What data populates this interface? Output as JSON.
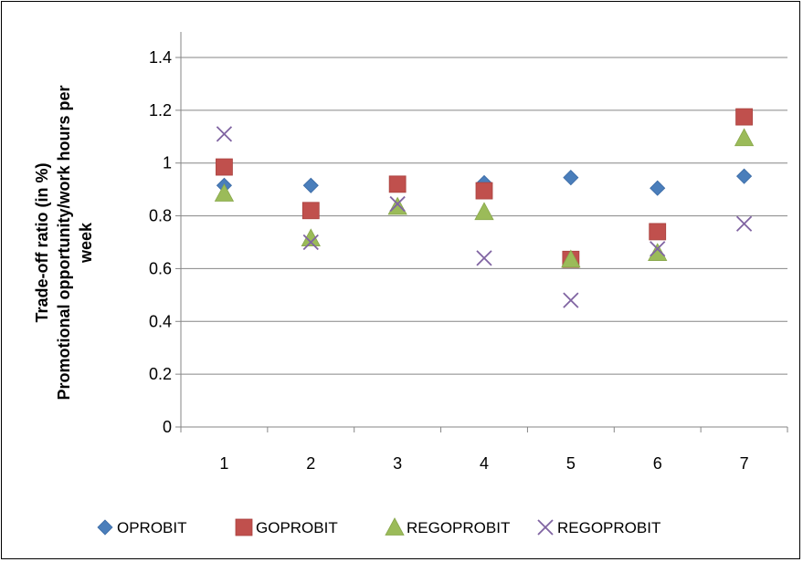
{
  "chart_data": {
    "type": "scatter",
    "categories": [
      "1",
      "2",
      "3",
      "4",
      "5",
      "6",
      "7"
    ],
    "x": [
      1,
      2,
      3,
      4,
      5,
      6,
      7
    ],
    "ylabel_lines": [
      "Trade-off ratio (in %)",
      "Promotional opportunity/work hours per",
      "week"
    ],
    "ylim": [
      0,
      1.4
    ],
    "yticks": [
      "0",
      "0.2",
      "0.4",
      "0.6",
      "0.8",
      "1",
      "1.2",
      "1.4"
    ],
    "ytick_values": [
      0,
      0.2,
      0.4,
      0.6,
      0.8,
      1.0,
      1.2,
      1.4
    ],
    "grid": "horizontal",
    "legend_position": "bottom",
    "series": [
      {
        "name": "OPROBIT",
        "marker": "diamond",
        "color": "#4a7ebb",
        "values": [
          0.915,
          0.915,
          0.92,
          0.925,
          0.945,
          0.905,
          0.95
        ]
      },
      {
        "name": "GOPROBIT",
        "marker": "square",
        "color": "#c0504d",
        "values": [
          0.985,
          0.82,
          0.92,
          0.895,
          0.635,
          0.74,
          1.175
        ]
      },
      {
        "name": "REGOPROBIT",
        "marker": "triangle",
        "color": "#9bbb59",
        "values": [
          0.885,
          0.715,
          0.835,
          0.815,
          0.635,
          0.66,
          1.095
        ]
      },
      {
        "name": "REGOPROBIT",
        "marker": "x",
        "color": "#8064a2",
        "values": [
          1.11,
          0.7,
          0.845,
          0.64,
          0.48,
          0.675,
          0.77
        ]
      }
    ]
  }
}
